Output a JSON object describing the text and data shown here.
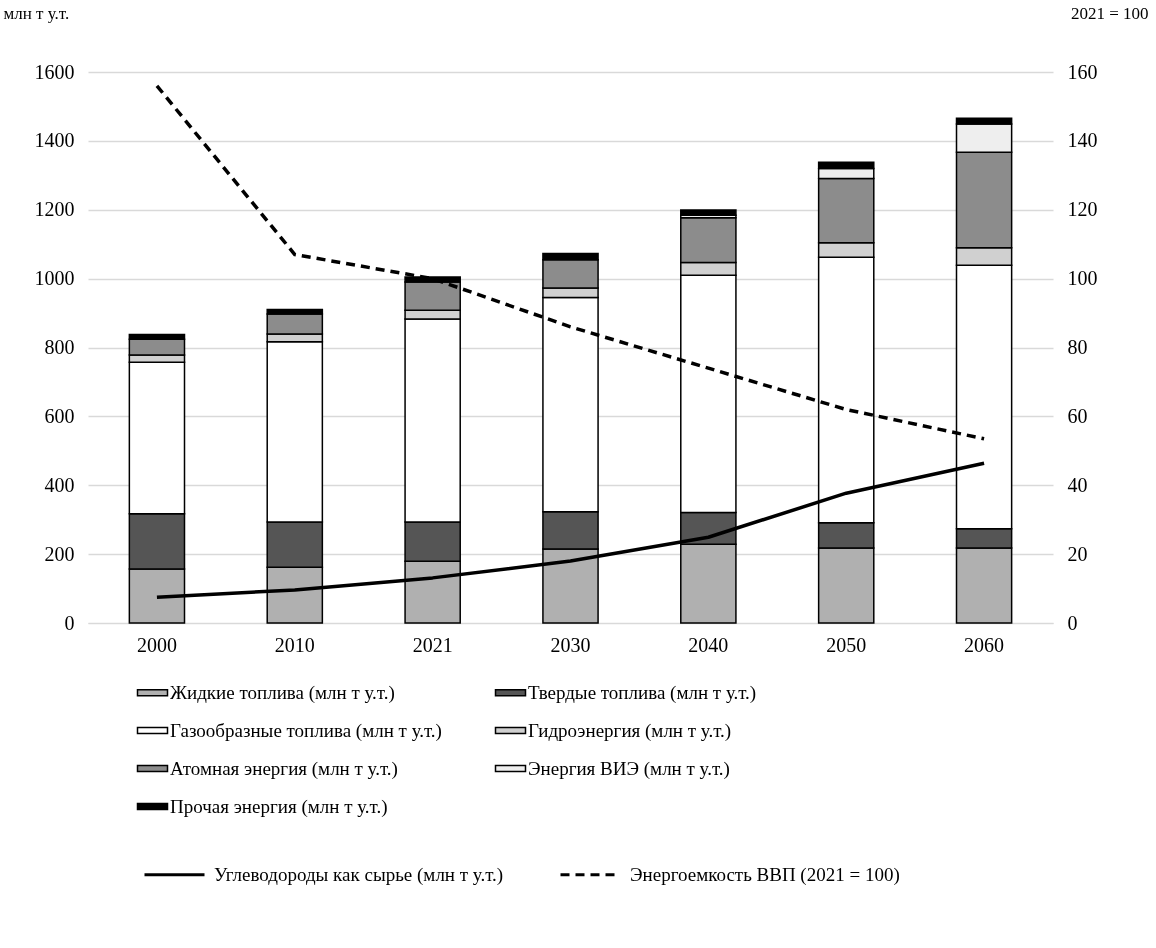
{
  "chart_data": {
    "type": "bar",
    "stacked": true,
    "categories": [
      "2000",
      "2010",
      "2021",
      "2030",
      "2040",
      "2050",
      "2060"
    ],
    "ylabel": "млн т у.т.",
    "y2label": "2021 = 100",
    "ylim": [
      0,
      1600
    ],
    "yticks": [
      0,
      200,
      400,
      600,
      800,
      1000,
      1200,
      1400,
      1600
    ],
    "y2lim": [
      0,
      160
    ],
    "y2ticks": [
      0,
      20,
      40,
      60,
      80,
      100,
      120,
      140,
      160
    ],
    "grid": "y",
    "legend": "bottom",
    "series": [
      {
        "name": "Жидкие топлива (млн т у.т.)",
        "color": "#b0b0b0",
        "values": [
          157,
          162,
          179,
          215,
          229,
          218,
          218
        ]
      },
      {
        "name": "Твердые топлива (млн т у.т.)",
        "color": "#555555",
        "values": [
          160,
          131,
          114,
          108,
          92,
          73,
          56
        ]
      },
      {
        "name": "Газообразные топлива (млн т у.т.)",
        "color": "#ffffff",
        "values": [
          440,
          524,
          590,
          622,
          689,
          771,
          765
        ]
      },
      {
        "name": "Гидроэнергия (млн т у.т.)",
        "color": "#d0d0d0",
        "values": [
          21,
          22,
          25,
          28,
          37,
          42,
          51
        ]
      },
      {
        "name": "Атомная энергия (млн т у.т.)",
        "color": "#8c8c8c",
        "values": [
          46,
          58,
          82,
          82,
          130,
          187,
          277
        ]
      },
      {
        "name": "Энергия ВИЭ (млн т у.т.)",
        "color": "#eeeeee",
        "values": [
          null,
          null,
          null,
          null,
          7,
          29,
          82
        ]
      },
      {
        "name": "Прочая энергия (млн т у.т.)",
        "color": "#000000",
        "values": [
          14,
          13,
          15,
          18,
          15,
          18,
          17
        ]
      },
      {
        "name": "Углеводороды как сырье (млн т у.т.)",
        "type": "line",
        "color": "#000000",
        "line_style": "solid",
        "values": [
          75,
          96,
          131,
          180,
          249,
          377,
          464
        ]
      },
      {
        "name": "Энергоемкость ВВП (2021 = 100)",
        "type": "line",
        "axis": "y2",
        "color": "#000000",
        "line_style": "dashed",
        "values": [
          156,
          107,
          100,
          86,
          74,
          62,
          53.5
        ]
      }
    ]
  }
}
